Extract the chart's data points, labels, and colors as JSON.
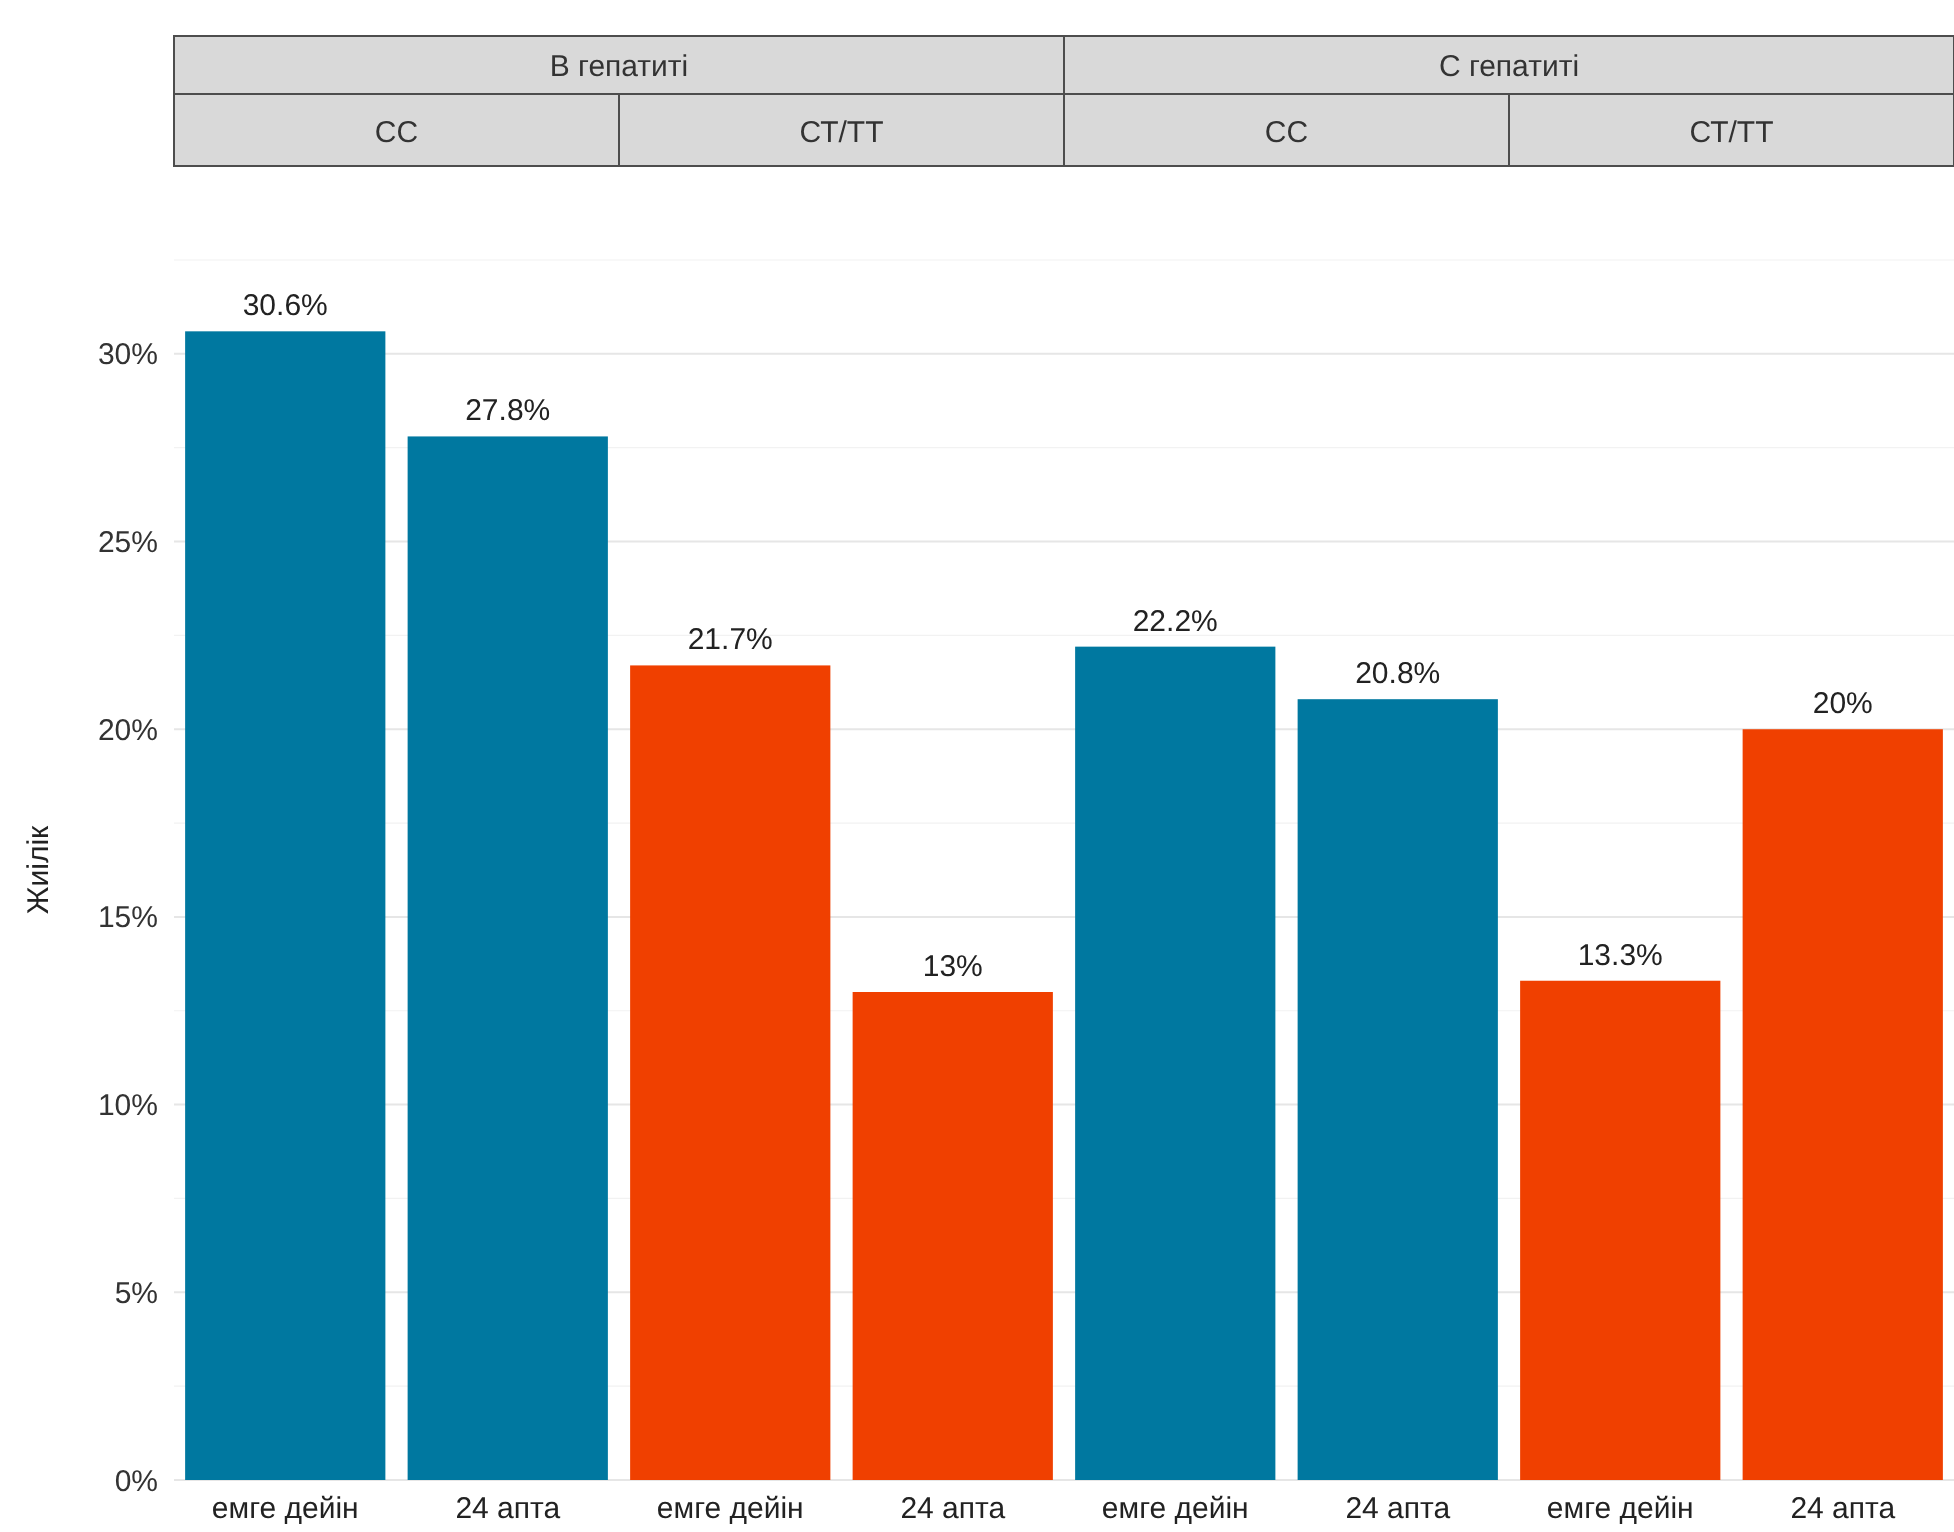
{
  "chart_data": [
    {
      "type": "bar",
      "subtitle": "В гепатиті",
      "title": "СС",
      "ylabel": "Жиілік",
      "categories": [
        "емге дейін",
        "24 апта"
      ],
      "values": [
        30.6,
        27.8
      ],
      "color": "#0078a0",
      "value_labels": [
        "30.6%",
        "27.8%"
      ],
      "ylim": [
        0,
        32.5
      ],
      "yticks": [
        {
          "value": 0,
          "label": "0%"
        },
        {
          "value": 2.5,
          "label": null
        },
        {
          "value": 5,
          "label": "5%"
        },
        {
          "value": 7.5,
          "label": null
        },
        {
          "value": 10,
          "label": "10%"
        },
        {
          "value": 12.5,
          "label": null
        },
        {
          "value": 15,
          "label": "15%"
        },
        {
          "value": 17.5,
          "label": null
        },
        {
          "value": 20,
          "label": "20%"
        },
        {
          "value": 22.5,
          "label": null
        },
        {
          "value": 25,
          "label": "25%"
        },
        {
          "value": 27.5,
          "label": null
        },
        {
          "value": 30,
          "label": "30%"
        },
        {
          "value": 32.5,
          "label": null
        }
      ],
      "grid": "y"
    },
    {
      "type": "bar",
      "title": "СТ/ТТ",
      "categories": [
        "емге дейін",
        "24 апта"
      ],
      "values": [
        21.7,
        13
      ],
      "color": "#f04000",
      "value_labels": [
        "21.7%",
        "13%"
      ],
      "ylim": [
        0,
        32.5
      ],
      "yticks": [
        0,
        2.5,
        5,
        7.5,
        10,
        12.5,
        15,
        17.5,
        20,
        22.5,
        25,
        27.5,
        30,
        32.5
      ],
      "grid": "y",
      "tick_labels": "x"
    },
    {
      "type": "bar",
      "subtitle": "С гепатиті",
      "title": "СС",
      "categories": [
        "емге дейін",
        "24 апта"
      ],
      "values": [
        22.2,
        20.8
      ],
      "color": "#0078a0",
      "value_labels": [
        "22.2%",
        "20.8%"
      ],
      "ylim": [
        0,
        32.5
      ],
      "yticks": [
        0,
        2.5,
        5,
        7.5,
        10,
        12.5,
        15,
        17.5,
        20,
        22.5,
        25,
        27.5,
        30,
        32.5
      ],
      "grid": "y",
      "tick_labels": "x"
    },
    {
      "type": "bar",
      "title": "СТ/ТТ",
      "categories": [
        "емге дейін",
        "24 апта"
      ],
      "values": [
        13.3,
        20
      ],
      "color": "#f04000",
      "value_labels": [
        "13.3%",
        "20%"
      ],
      "ylim": [
        0,
        32.5
      ],
      "yticks": [
        0,
        2.5,
        5,
        7.5,
        10,
        12.5,
        15,
        17.5,
        20,
        22.5,
        25,
        27.5,
        30,
        32.5
      ],
      "grid": "y",
      "tick_labels": "x"
    }
  ]
}
